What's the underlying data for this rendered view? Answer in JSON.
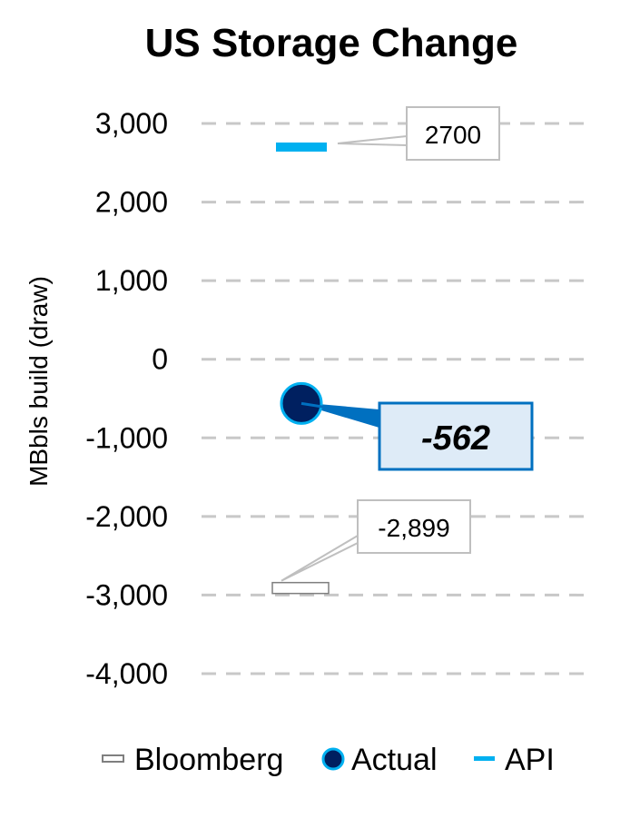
{
  "chart_data": {
    "type": "scatter",
    "title": "US Storage Change",
    "ylabel": "MBbls build (draw)",
    "xlabel": "",
    "ylim": [
      -4000,
      3000
    ],
    "yticks": [
      3000,
      2000,
      1000,
      0,
      -1000,
      -2000,
      -3000,
      -4000
    ],
    "ytick_labels": [
      "3,000",
      "2,000",
      "1,000",
      "0",
      "-1,000",
      "-2,000",
      "-3,000",
      "-4,000"
    ],
    "grid": true,
    "legend_position": "bottom",
    "series": [
      {
        "name": "Bloomberg",
        "value": -2899,
        "label": "-2,899",
        "marker": "hollow-bar",
        "color": "#7f7f7f"
      },
      {
        "name": "Actual",
        "value": -562,
        "label": "-562",
        "marker": "circle",
        "color": "#002060",
        "edge_color": "#00b0f0"
      },
      {
        "name": "API",
        "value": 2700,
        "label": "2700",
        "marker": "bar",
        "color": "#00b0f0"
      }
    ]
  }
}
